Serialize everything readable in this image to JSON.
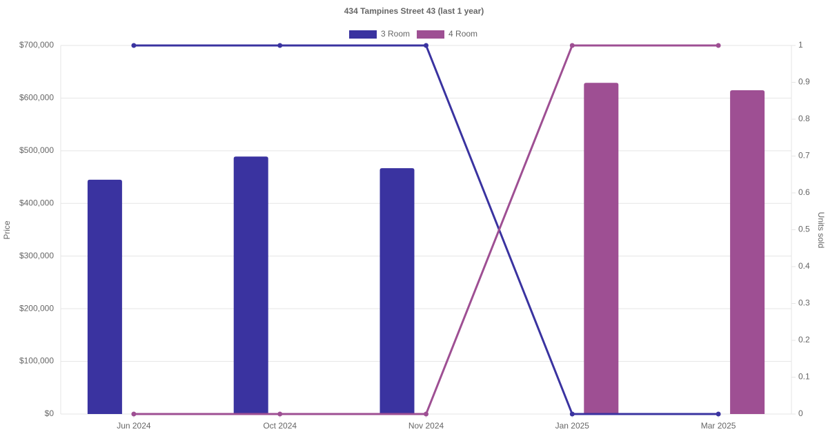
{
  "chart_data": {
    "type": "bar-line",
    "title": "434 Tampines Street 43 (last 1 year)",
    "categories": [
      "Jun 2024",
      "Oct 2024",
      "Nov 2024",
      "Jan 2025",
      "Mar 2025"
    ],
    "series": [
      {
        "name": "3 Room",
        "color": "#3a33a0",
        "values": [
          445000,
          489000,
          467000,
          null,
          null
        ],
        "units_sold": [
          1,
          1,
          1,
          0,
          0
        ]
      },
      {
        "name": "4 Room",
        "color": "#9e4f93",
        "values": [
          null,
          null,
          null,
          629000,
          615000
        ],
        "units_sold": [
          0,
          0,
          0,
          1,
          1
        ]
      }
    ],
    "y_label": "Price",
    "y2_label": "Units sold",
    "ylim": [
      0,
      700000
    ],
    "yticks": [
      {
        "value": 0,
        "label": "$0"
      },
      {
        "value": 100000,
        "label": "$100,000"
      },
      {
        "value": 200000,
        "label": "$200,000"
      },
      {
        "value": 300000,
        "label": "$300,000"
      },
      {
        "value": 400000,
        "label": "$400,000"
      },
      {
        "value": 500000,
        "label": "$500,000"
      },
      {
        "value": 600000,
        "label": "$600,000"
      },
      {
        "value": 700000,
        "label": "$700,000"
      }
    ],
    "y2lim": [
      0,
      1
    ],
    "y2ticks": [
      0,
      0.1,
      0.2,
      0.3,
      0.4,
      0.5,
      0.6,
      0.7,
      0.8,
      0.9,
      1
    ],
    "grid": true
  }
}
